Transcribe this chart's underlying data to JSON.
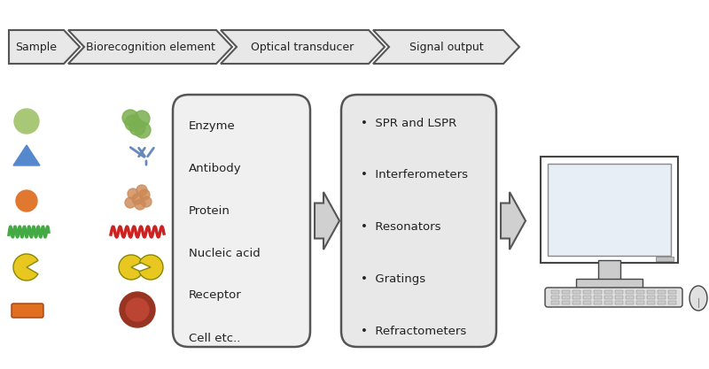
{
  "bg_color": "#ffffff",
  "box1_items": [
    "Enzyme",
    "Antibody",
    "Protein",
    "Nucleic acid",
    "Receptor",
    "Cell etc.."
  ],
  "box2_items": [
    "SPR and LSPR",
    "Interferometers",
    "Resonators",
    "Gratings",
    "Refractometers"
  ],
  "bottom_labels": [
    "Sample",
    "Biorecognition element",
    "Optical transducer",
    "Signal output"
  ],
  "box1_color": "#f0f0f0",
  "box2_color": "#e8e8e8",
  "box_edge_color": "#555555",
  "arrow_fill": "#d0d0d0",
  "arrow_edge": "#555555",
  "bottom_arrow_fill": "#e8e8e8",
  "bottom_arrow_edge": "#555555",
  "text_color": "#222222"
}
